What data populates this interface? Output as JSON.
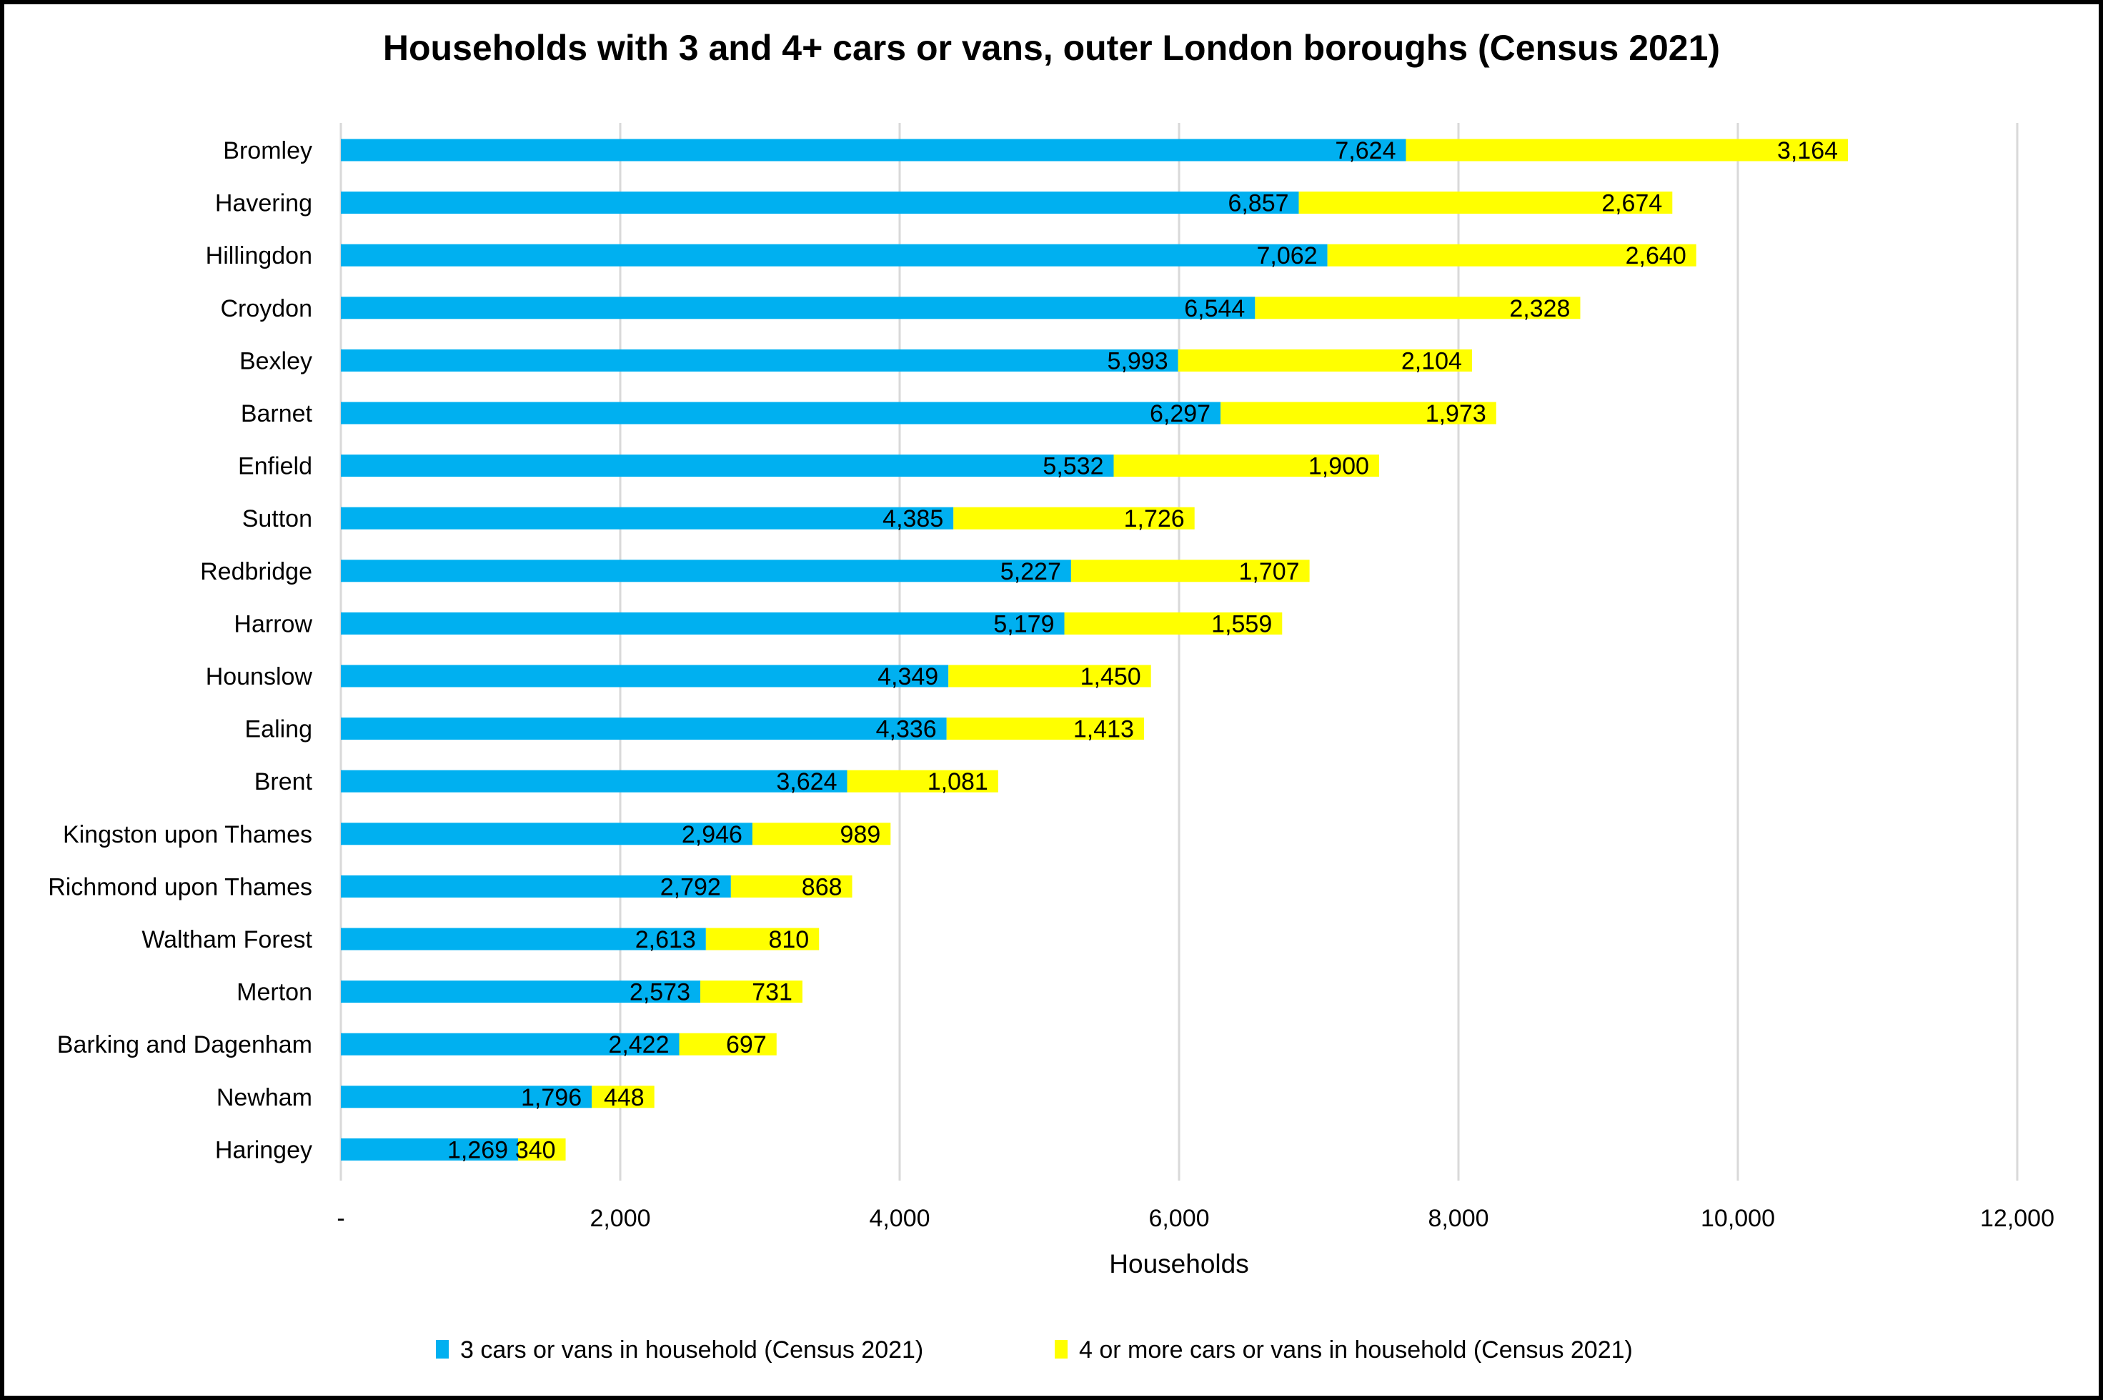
{
  "chart_data": {
    "type": "bar",
    "orientation": "horizontal",
    "stacked": true,
    "title": "Households with 3 and 4+ cars or vans, outer London boroughs (Census 2021)",
    "xlabel": "Households",
    "ylabel": "",
    "xlim": [
      0,
      12000
    ],
    "x_ticks": [
      0,
      2000,
      4000,
      6000,
      8000,
      10000,
      12000
    ],
    "x_tick_labels": [
      "-",
      "2,000",
      "4,000",
      "6,000",
      "8,000",
      "10,000",
      "12,000"
    ],
    "grid": "vertical",
    "legend_position": "bottom",
    "categories": [
      "Bromley",
      "Havering",
      "Hillingdon",
      "Croydon",
      "Bexley",
      "Barnet",
      "Enfield",
      "Sutton",
      "Redbridge",
      "Harrow",
      "Hounslow",
      "Ealing",
      "Brent",
      "Kingston upon Thames",
      "Richmond upon Thames",
      "Waltham Forest",
      "Merton",
      "Barking and Dagenham",
      "Newham",
      "Haringey"
    ],
    "series": [
      {
        "name": "3 cars or vans in household (Census 2021)",
        "color": "#00b0f0",
        "values": [
          7624,
          6857,
          7062,
          6544,
          5993,
          6297,
          5532,
          4385,
          5227,
          5179,
          4349,
          4336,
          3624,
          2946,
          2792,
          2613,
          2573,
          2422,
          1796,
          1269
        ],
        "labels": [
          "7,624",
          "6,857",
          "7,062",
          "6,544",
          "5,993",
          "6,297",
          "5,532",
          "4,385",
          "5,227",
          "5,179",
          "4,349",
          "4,336",
          "3,624",
          "2,946",
          "2,792",
          "2,613",
          "2,573",
          "2,422",
          "1,796",
          "1,269"
        ]
      },
      {
        "name": "4 or more cars or vans in household (Census 2021)",
        "color": "#ffff00",
        "values": [
          3164,
          2674,
          2640,
          2328,
          2104,
          1973,
          1900,
          1726,
          1707,
          1559,
          1450,
          1413,
          1081,
          989,
          868,
          810,
          731,
          697,
          448,
          340
        ],
        "labels": [
          "3,164",
          "2,674",
          "2,640",
          "2,328",
          "2,104",
          "1,973",
          "1,900",
          "1,726",
          "1,707",
          "1,559",
          "1,450",
          "1,413",
          "1,081",
          "989",
          "868",
          "810",
          "731",
          "697",
          "448",
          "340"
        ]
      }
    ]
  }
}
